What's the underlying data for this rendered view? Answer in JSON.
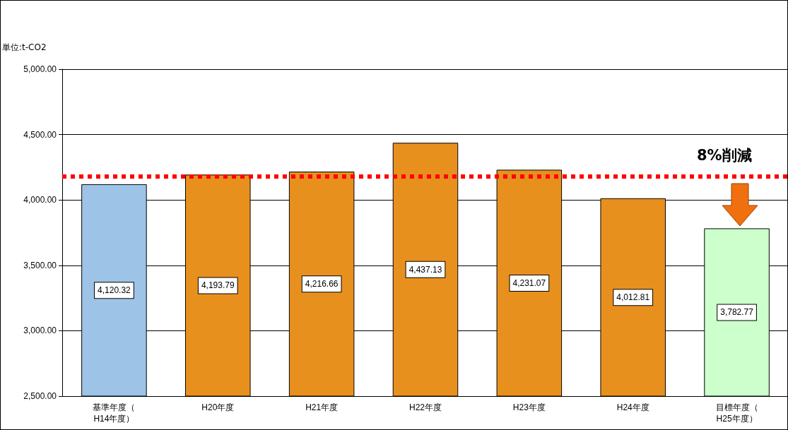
{
  "chart_data": {
    "type": "bar",
    "ylabel": "単位:t-CO2",
    "categories": [
      "基準年度（H14年度）",
      "H20年度",
      "H21年度",
      "H22年度",
      "H23年度",
      "H24年度",
      "目標年度（H25年度）"
    ],
    "values": [
      4120.32,
      4193.79,
      4216.66,
      4437.13,
      4231.07,
      4012.81,
      3782.77
    ],
    "colors": [
      "#9dc3e6",
      "#e8901e",
      "#e8901e",
      "#e8901e",
      "#e8901e",
      "#e8901e",
      "#ccffcc"
    ],
    "ylim": [
      2500,
      5000
    ],
    "yticks": [
      {
        "value": 2500,
        "label": "2,500.00"
      },
      {
        "value": 3000,
        "label": "3,000.00"
      },
      {
        "value": 3500,
        "label": "3,500.00"
      },
      {
        "value": 4000,
        "label": "4,000.00"
      },
      {
        "value": 4500,
        "label": "4,500.00"
      },
      {
        "value": 5000,
        "label": "5,000.00"
      }
    ],
    "value_labels": [
      "4,120.32",
      "4,193.79",
      "4,216.66",
      "4,437.13",
      "4,231.07",
      "4,012.81",
      "3,782.77"
    ],
    "grid": "y",
    "ref_lines": [
      {
        "axis": "y",
        "value": 4180,
        "color": "#ff0000",
        "line_style": "dotted"
      }
    ],
    "annotations": [
      "8%削減"
    ]
  }
}
